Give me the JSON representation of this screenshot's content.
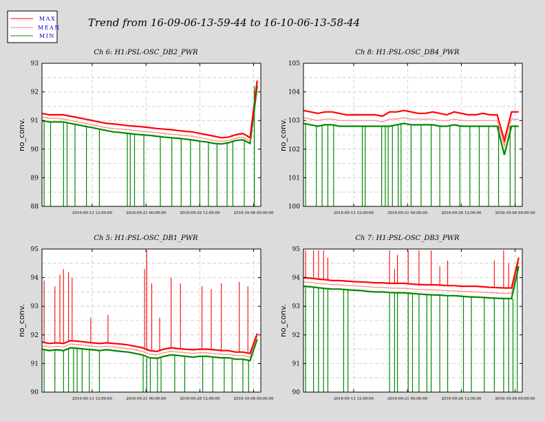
{
  "figure_title": "Trend from 16-09-06-13-59-44 to 16-10-06-13-58-44",
  "colors": {
    "max": "#ff0000",
    "mean": "#ff8080",
    "min": "#008800"
  },
  "legend": [
    {
      "key": "max",
      "label": "MAX"
    },
    {
      "key": "mean",
      "label": "MEAN"
    },
    {
      "key": "min",
      "label": "MIN"
    }
  ],
  "chart_data": [
    {
      "type": "line",
      "title": "Ch 6: H1:PSL-OSC_DB2_PWR",
      "ylabel": "no_conv.",
      "ylim": [
        88,
        93
      ],
      "yticks": [
        "88",
        "89",
        "90",
        "91",
        "92",
        "93"
      ],
      "xticks": [
        "2016-09-13 12:00:00",
        "2016-09-21 00:00:00",
        "2016-09-28 12:00:00",
        "2016-10-06 00:00:00"
      ],
      "grid": true,
      "x_days": [
        0,
        1,
        2,
        3,
        4,
        5,
        6,
        7,
        8,
        9,
        10,
        11,
        12,
        13,
        14,
        15,
        16,
        17,
        18,
        19,
        20,
        21,
        22,
        23,
        24,
        25,
        26,
        27,
        28,
        29,
        30
      ],
      "series": [
        {
          "name": "MAX",
          "values": [
            91.25,
            91.2,
            91.2,
            91.2,
            91.15,
            91.1,
            91.05,
            91.0,
            90.95,
            90.9,
            90.88,
            90.85,
            90.82,
            90.8,
            90.78,
            90.75,
            90.72,
            90.7,
            90.68,
            90.65,
            90.62,
            90.6,
            90.55,
            90.5,
            90.45,
            90.4,
            90.42,
            90.5,
            90.55,
            90.4,
            92.4
          ]
        },
        {
          "name": "MEAN",
          "values": [
            91.12,
            91.08,
            91.08,
            91.05,
            91.0,
            90.95,
            90.9,
            90.85,
            90.8,
            90.75,
            90.72,
            90.7,
            90.68,
            90.65,
            90.62,
            90.6,
            90.58,
            90.55,
            90.52,
            90.5,
            90.47,
            90.45,
            90.4,
            90.35,
            90.3,
            90.27,
            90.3,
            90.38,
            90.42,
            90.28,
            92.3
          ]
        },
        {
          "name": "MIN",
          "values": [
            91.0,
            90.95,
            90.95,
            90.95,
            90.9,
            90.85,
            90.8,
            90.75,
            90.7,
            90.65,
            90.6,
            90.58,
            90.55,
            90.52,
            90.5,
            90.48,
            90.45,
            90.42,
            90.4,
            90.38,
            90.35,
            90.32,
            90.28,
            90.25,
            90.2,
            90.18,
            90.22,
            90.3,
            90.33,
            90.2,
            92.2
          ]
        }
      ],
      "min_dropouts": [
        0.3,
        1.2,
        3.0,
        3.5,
        4.6,
        6.2,
        8.0,
        11.9,
        12.3,
        12.9,
        14.2,
        16.5,
        18.1,
        19.4,
        20.7,
        22.0,
        23.2,
        24.4,
        25.8,
        26.6,
        28.2,
        29.6
      ],
      "max_spikes": []
    },
    {
      "type": "line",
      "title": "Ch 8: H1:PSL-OSC_DB4_PWR",
      "ylabel": "no_conv.",
      "ylim": [
        100,
        105
      ],
      "yticks": [
        "100",
        "101",
        "102",
        "103",
        "104",
        "105"
      ],
      "xticks": [
        "2016-09-13 12:00:00",
        "2016-09-21 00:00:00",
        "2016-09-28 12:00:00",
        "2016-10-06 00:00:00"
      ],
      "grid": true,
      "x_days": [
        0,
        1,
        2,
        3,
        4,
        5,
        6,
        7,
        8,
        9,
        10,
        11,
        12,
        13,
        14,
        15,
        16,
        17,
        18,
        19,
        20,
        21,
        22,
        23,
        24,
        25,
        26,
        27,
        28,
        29,
        30
      ],
      "series": [
        {
          "name": "MAX",
          "values": [
            103.35,
            103.3,
            103.25,
            103.3,
            103.3,
            103.25,
            103.2,
            103.2,
            103.2,
            103.2,
            103.2,
            103.15,
            103.3,
            103.3,
            103.35,
            103.3,
            103.25,
            103.25,
            103.3,
            103.25,
            103.2,
            103.3,
            103.25,
            103.2,
            103.2,
            103.25,
            103.2,
            103.2,
            102.3,
            103.3,
            103.3
          ]
        },
        {
          "name": "MEAN",
          "values": [
            103.1,
            103.05,
            103.0,
            103.05,
            103.05,
            103.0,
            103.0,
            103.0,
            103.0,
            103.0,
            103.0,
            102.95,
            103.05,
            103.05,
            103.1,
            103.05,
            103.05,
            103.05,
            103.05,
            103.0,
            103.0,
            103.05,
            103.0,
            103.0,
            103.0,
            103.0,
            103.0,
            103.0,
            102.1,
            103.05,
            103.05
          ]
        },
        {
          "name": "MIN",
          "values": [
            102.9,
            102.85,
            102.8,
            102.85,
            102.85,
            102.8,
            102.8,
            102.8,
            102.8,
            102.8,
            102.8,
            102.8,
            102.8,
            102.85,
            102.9,
            102.85,
            102.85,
            102.85,
            102.85,
            102.8,
            102.8,
            102.85,
            102.8,
            102.8,
            102.8,
            102.8,
            102.8,
            102.8,
            101.8,
            102.8,
            102.8
          ]
        }
      ],
      "min_dropouts": [
        0.3,
        1.8,
        2.6,
        3.4,
        4.2,
        8.2,
        8.6,
        10.9,
        11.4,
        11.8,
        12.4,
        13.2,
        13.6,
        15.0,
        16.4,
        17.8,
        19.0,
        20.4,
        21.8,
        23.2,
        24.5,
        25.8,
        27.2,
        28.8,
        29.5
      ],
      "max_spikes": []
    },
    {
      "type": "line",
      "title": "Ch 5: H1:PSL-OSC_DB1_PWR",
      "ylabel": "no_conv.",
      "ylim": [
        90,
        95
      ],
      "yticks": [
        "90",
        "91",
        "92",
        "93",
        "94",
        "95"
      ],
      "xticks": [
        "2016-09-13 12:00:00",
        "2016-09-21 00:00:00",
        "2016-09-28 12:00:00",
        "2016-10-06 00:00:00"
      ],
      "grid": true,
      "x_days": [
        0,
        1,
        2,
        3,
        4,
        5,
        6,
        7,
        8,
        9,
        10,
        11,
        12,
        13,
        14,
        15,
        16,
        17,
        18,
        19,
        20,
        21,
        22,
        23,
        24,
        25,
        26,
        27,
        28,
        29,
        30
      ],
      "series": [
        {
          "name": "MAX",
          "values": [
            91.75,
            91.7,
            91.72,
            91.7,
            91.8,
            91.78,
            91.75,
            91.72,
            91.7,
            91.72,
            91.7,
            91.68,
            91.65,
            91.6,
            91.55,
            91.45,
            91.42,
            91.5,
            91.55,
            91.52,
            91.5,
            91.48,
            91.5,
            91.5,
            91.48,
            91.45,
            91.45,
            91.4,
            91.4,
            91.35,
            92.05
          ]
        },
        {
          "name": "MEAN",
          "values": [
            91.62,
            91.58,
            91.6,
            91.58,
            91.68,
            91.66,
            91.63,
            91.6,
            91.58,
            91.6,
            91.58,
            91.55,
            91.52,
            91.48,
            91.42,
            91.33,
            91.3,
            91.38,
            91.42,
            91.4,
            91.38,
            91.35,
            91.38,
            91.37,
            91.35,
            91.32,
            91.32,
            91.28,
            91.28,
            91.22,
            91.95
          ]
        },
        {
          "name": "MIN",
          "values": [
            91.5,
            91.45,
            91.48,
            91.45,
            91.55,
            91.53,
            91.5,
            91.48,
            91.45,
            91.48,
            91.45,
            91.42,
            91.4,
            91.35,
            91.3,
            91.2,
            91.18,
            91.25,
            91.3,
            91.28,
            91.25,
            91.22,
            91.25,
            91.25,
            91.22,
            91.2,
            91.2,
            91.15,
            91.15,
            91.1,
            91.85
          ]
        }
      ],
      "min_dropouts": [
        0.3,
        1.8,
        3.0,
        3.7,
        4.4,
        4.9,
        5.6,
        6.6,
        8.0,
        14.1,
        14.6,
        15.1,
        16.1,
        16.6,
        18.5,
        19.9,
        22.4,
        23.8,
        25.4,
        26.5,
        28.0,
        28.8
      ],
      "max_spikes": [
        [
          0.3,
          93.9
        ],
        [
          1.8,
          93.7
        ],
        [
          2.5,
          94.1
        ],
        [
          3.0,
          94.3
        ],
        [
          3.7,
          94.2
        ],
        [
          4.2,
          94.0
        ],
        [
          6.8,
          92.6
        ],
        [
          9.2,
          92.7
        ],
        [
          14.3,
          94.3
        ],
        [
          14.6,
          94.95
        ],
        [
          15.3,
          93.8
        ],
        [
          16.4,
          92.6
        ],
        [
          18.0,
          94.0
        ],
        [
          19.3,
          93.8
        ],
        [
          22.3,
          93.7
        ],
        [
          23.6,
          93.6
        ],
        [
          25.0,
          93.8
        ],
        [
          27.5,
          93.85
        ],
        [
          28.7,
          93.7
        ]
      ]
    },
    {
      "type": "line",
      "title": "Ch 7: H1:PSL-OSC_DB3_PWR",
      "ylabel": "no_conv.",
      "ylim": [
        90,
        95
      ],
      "yticks": [
        "90",
        "91",
        "92",
        "93",
        "94",
        "95"
      ],
      "xticks": [
        "2016-09-13 12:00:00",
        "2016-09-21 00:00:00",
        "2016-09-28 12:00:00",
        "2016-10-06 00:00:00"
      ],
      "grid": true,
      "x_days": [
        0,
        1,
        2,
        3,
        4,
        5,
        6,
        7,
        8,
        9,
        10,
        11,
        12,
        13,
        14,
        15,
        16,
        17,
        18,
        19,
        20,
        21,
        22,
        23,
        24,
        25,
        26,
        27,
        28,
        29,
        30
      ],
      "series": [
        {
          "name": "MAX",
          "values": [
            94.0,
            93.98,
            93.95,
            93.93,
            93.9,
            93.9,
            93.88,
            93.86,
            93.85,
            93.84,
            93.82,
            93.82,
            93.8,
            93.8,
            93.8,
            93.78,
            93.76,
            93.75,
            93.75,
            93.74,
            93.72,
            93.72,
            93.7,
            93.7,
            93.7,
            93.68,
            93.66,
            93.65,
            93.64,
            93.64,
            94.7
          ]
        },
        {
          "name": "MEAN",
          "values": [
            93.85,
            93.83,
            93.8,
            93.78,
            93.76,
            93.75,
            93.73,
            93.71,
            93.7,
            93.68,
            93.66,
            93.66,
            93.64,
            93.63,
            93.63,
            93.61,
            93.59,
            93.58,
            93.57,
            93.56,
            93.54,
            93.54,
            93.52,
            93.51,
            93.5,
            93.49,
            93.47,
            93.46,
            93.45,
            93.45,
            94.55
          ]
        },
        {
          "name": "MIN",
          "values": [
            93.7,
            93.68,
            93.65,
            93.62,
            93.6,
            93.6,
            93.58,
            93.56,
            93.55,
            93.52,
            93.5,
            93.5,
            93.48,
            93.47,
            93.47,
            93.45,
            93.43,
            93.41,
            93.4,
            93.39,
            93.37,
            93.37,
            93.35,
            93.33,
            93.32,
            93.31,
            93.29,
            93.28,
            93.27,
            93.27,
            94.4
          ]
        }
      ],
      "min_dropouts": [
        0.3,
        1.4,
        2.1,
        2.8,
        3.4,
        5.6,
        6.2,
        12.0,
        12.7,
        13.1,
        14.6,
        15.2,
        16.1,
        17.2,
        17.8,
        19.0,
        20.1,
        22.3,
        23.4,
        25.2,
        26.6,
        27.9,
        28.6,
        29.2,
        29.8
      ],
      "max_spikes": [
        [
          0.3,
          94.95
        ],
        [
          1.4,
          94.95
        ],
        [
          2.1,
          94.95
        ],
        [
          2.8,
          94.95
        ],
        [
          3.4,
          94.7
        ],
        [
          12.0,
          94.95
        ],
        [
          12.7,
          94.3
        ],
        [
          13.1,
          94.8
        ],
        [
          14.6,
          94.95
        ],
        [
          16.1,
          94.95
        ],
        [
          17.8,
          94.95
        ],
        [
          19.0,
          94.4
        ],
        [
          20.1,
          94.6
        ],
        [
          26.6,
          94.6
        ],
        [
          27.9,
          94.95
        ],
        [
          28.6,
          94.5
        ]
      ]
    }
  ]
}
